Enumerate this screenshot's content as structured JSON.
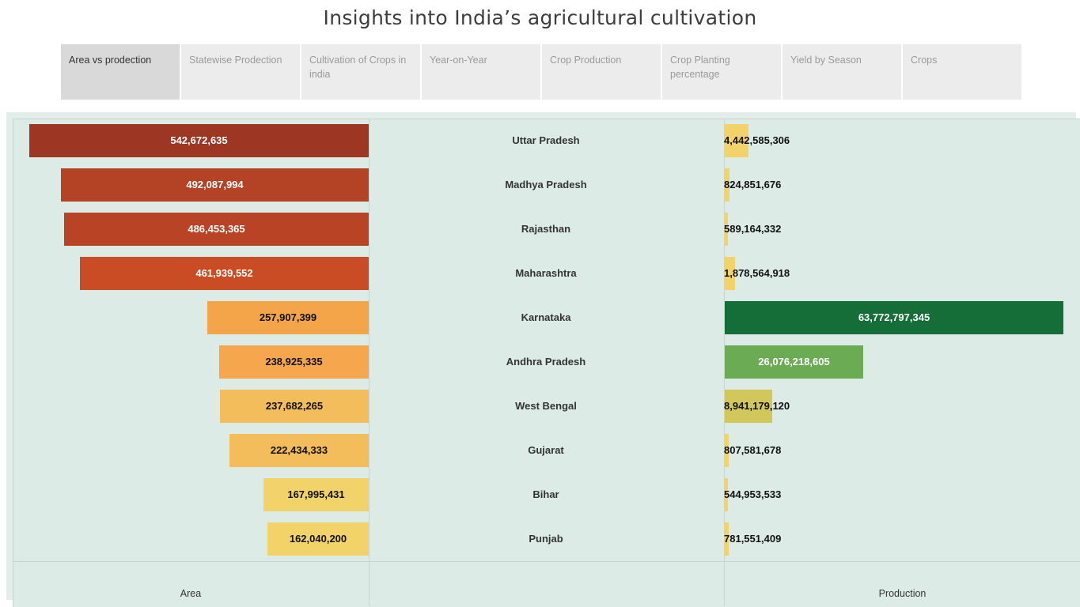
{
  "title": "Insights into India’s agricultural cultivation",
  "tabs": [
    {
      "label": "Area vs prodection",
      "active": true
    },
    {
      "label": "Statewise Prodection",
      "active": false
    },
    {
      "label": "Cultivation of Crops in india",
      "active": false
    },
    {
      "label": "Year-on-Year",
      "active": false
    },
    {
      "label": "Crop Production",
      "active": false
    },
    {
      "label": "Crop Planting percentage",
      "active": false
    },
    {
      "label": "Yield by Season",
      "active": false
    },
    {
      "label": "Crops",
      "active": false
    }
  ],
  "chart_data": {
    "type": "bar",
    "categories": [
      "Uttar Pradesh",
      "Madhya Pradesh",
      "Rajasthan",
      "Maharashtra",
      "Karnataka",
      "Andhra Pradesh",
      "West Bengal",
      "Gujarat",
      "Bihar",
      "Punjab"
    ],
    "series": [
      {
        "name": "Area",
        "values": [
          542672635,
          492087994,
          486453365,
          461939552,
          257907399,
          238925335,
          237682265,
          222434333,
          167995431,
          162040200
        ],
        "labels": [
          "542,672,635",
          "492,087,994",
          "486,453,365",
          "461,939,552",
          "257,907,399",
          "238,925,335",
          "237,682,265",
          "222,434,333",
          "167,995,431",
          "162,040,200"
        ],
        "colors": [
          "#9e3624",
          "#b44224",
          "#b84325",
          "#c94c25",
          "#f4a449",
          "#f6a64c",
          "#f4bd5c",
          "#f4bd5c",
          "#f1d369",
          "#f1d369"
        ]
      },
      {
        "name": "Production",
        "values": [
          4442585306,
          824851676,
          589164332,
          1878564918,
          63772797345,
          26076218605,
          8941179120,
          807581678,
          544953533,
          781551409
        ],
        "labels": [
          "4,442,585,306",
          "824,851,676",
          "589,164,332",
          "1,878,564,918",
          "63,772,797,345",
          "26,076,218,605",
          "8,941,179,120",
          "807,581,678",
          "544,953,533",
          "781,551,409"
        ],
        "colors": [
          "#f1d369",
          "#f1d369",
          "#f1d369",
          "#f1d369",
          "#156d37",
          "#6aab54",
          "#d1c75b",
          "#f1d369",
          "#f1d369",
          "#f1d369"
        ]
      }
    ],
    "xlabel_left": "Area",
    "xlabel_right": "Production",
    "grid": false
  }
}
